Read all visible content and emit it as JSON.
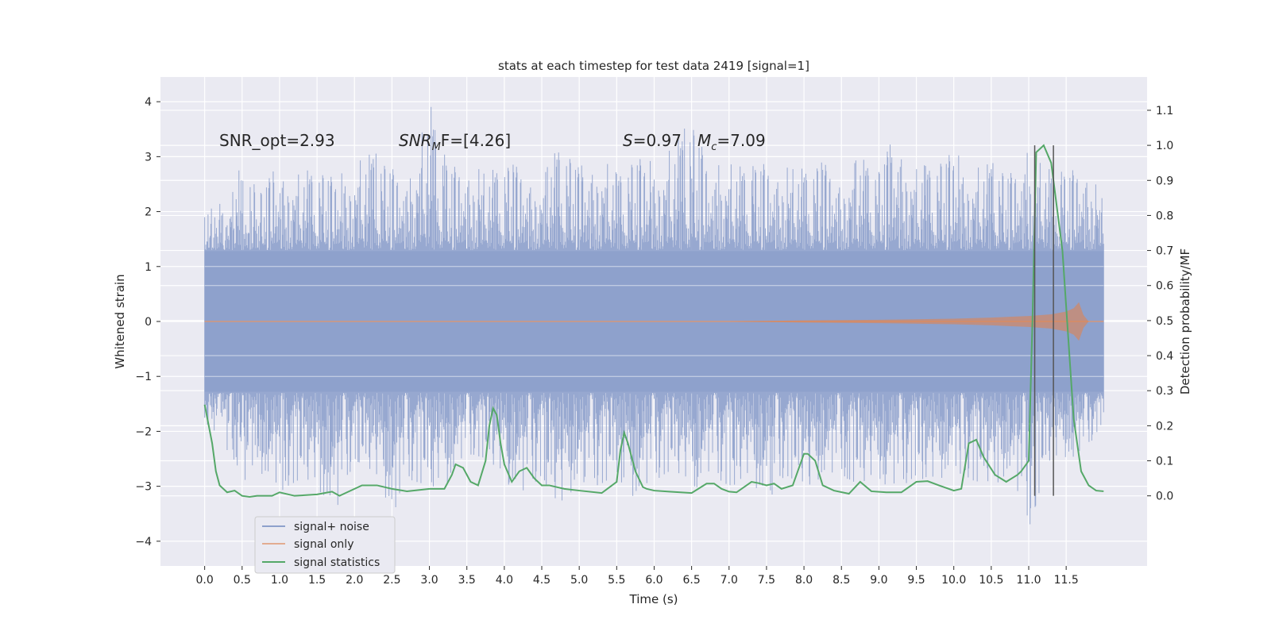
{
  "chart_data": {
    "type": "line",
    "title": "stats at each timestep for test data 2419 [signal=1]",
    "xlabel": "Time (s)",
    "ylabel": "Whitened strain",
    "ylabel_right": "Detection probability/MF",
    "xlim": [
      -0.59,
      12.58
    ],
    "ylim": [
      -4.45,
      4.45
    ],
    "y2lim": [
      -0.2,
      1.195
    ],
    "x_ticks": [
      0.0,
      0.5,
      1.0,
      1.5,
      2.0,
      2.5,
      3.0,
      3.5,
      4.0,
      4.5,
      5.0,
      5.5,
      6.0,
      6.5,
      7.0,
      7.5,
      8.0,
      8.5,
      9.0,
      9.5,
      10.0,
      10.5,
      11.0,
      11.5
    ],
    "x_tick_labels": [
      "0.0",
      "0.5",
      "1.0",
      "1.5",
      "2.0",
      "2.5",
      "3.0",
      "3.5",
      "4.0",
      "4.5",
      "5.0",
      "5.5",
      "6.0",
      "6.5",
      "7.0",
      "7.5",
      "8.0",
      "8.5",
      "9.0",
      "9.5",
      "10.0",
      "10.5",
      "11.0",
      "11.5"
    ],
    "y_ticks": [
      4,
      3,
      2,
      1,
      0,
      -1,
      -2,
      -3,
      -4
    ],
    "y_tick_labels": [
      "4",
      "3",
      "2",
      "1",
      "0",
      "−1",
      "−2",
      "−3",
      "−4"
    ],
    "y2_ticks": [
      1.1,
      1.0,
      0.9,
      0.8,
      0.7,
      0.6,
      0.5,
      0.4,
      0.3,
      0.2,
      0.1,
      0.0
    ],
    "y2_tick_labels": [
      "1.1",
      "1.0",
      "0.9",
      "0.8",
      "0.7",
      "0.6",
      "0.5",
      "0.4",
      "0.3",
      "0.2",
      "0.1",
      "0.0"
    ],
    "grid": true,
    "legend_position": "lower-left",
    "series": [
      {
        "name": "signal+ noise",
        "color": "#8ea1cc",
        "axis": "left",
        "x_range": [
          0.0,
          12.0
        ],
        "envelope_upper": [
          1.9,
          2.5,
          2.8,
          2.4,
          2.9,
          2.7,
          2.8,
          2.6,
          2.9,
          3.1,
          2.8,
          2.6,
          4.05,
          2.8,
          2.9,
          2.7,
          2.9,
          2.8,
          2.6,
          3.3,
          2.8,
          3.1,
          2.7,
          3.0,
          2.9,
          3.2,
          3.7,
          2.8,
          2.9,
          2.8,
          2.9,
          2.8,
          2.8,
          2.9,
          2.7,
          3.0,
          2.8,
          3.5,
          2.8,
          2.9,
          3.1,
          2.8,
          2.9,
          2.7,
          3.1,
          2.8,
          2.7,
          2.9,
          2.2
        ],
        "envelope_lower": [
          -1.8,
          -2.3,
          -2.9,
          -2.8,
          -3.1,
          -2.9,
          -3.0,
          -3.6,
          -2.5,
          -2.8,
          -3.5,
          -2.9,
          -3.0,
          -3.0,
          -2.4,
          -2.5,
          -2.9,
          -3.2,
          -2.8,
          -3.5,
          -2.9,
          -3.0,
          -2.8,
          -3.3,
          -2.9,
          -2.7,
          -3.1,
          -2.8,
          -3.0,
          -2.9,
          -3.3,
          -2.8,
          -3.0,
          -2.9,
          -2.8,
          -3.0,
          -2.9,
          -3.1,
          -2.8,
          -3.0,
          -2.7,
          -2.9,
          -3.0,
          -2.8,
          -3.8,
          -2.6,
          -2.5,
          -2.4,
          -1.8
        ],
        "dense_band": [
          -1.28,
          1.28
        ]
      },
      {
        "name": "signal only",
        "color": "#dd8452",
        "axis": "left",
        "x": [
          0.0,
          7.0,
          8.0,
          9.0,
          10.0,
          10.5,
          11.0,
          11.3,
          11.5,
          11.6,
          11.67,
          11.73,
          11.8,
          12.0
        ],
        "amplitude": [
          0.0,
          0.0,
          0.02,
          0.03,
          0.05,
          0.07,
          0.1,
          0.13,
          0.18,
          0.24,
          0.35,
          0.12,
          0.0,
          0.0
        ]
      },
      {
        "name": "signal statistics",
        "color": "#55a868",
        "axis": "right",
        "x": [
          0.0,
          0.1,
          0.15,
          0.2,
          0.3,
          0.4,
          0.5,
          0.6,
          0.7,
          0.8,
          0.9,
          1.0,
          1.2,
          1.5,
          1.7,
          1.8,
          2.0,
          2.1,
          2.2,
          2.3,
          2.5,
          2.7,
          3.0,
          3.2,
          3.3,
          3.35,
          3.45,
          3.55,
          3.65,
          3.75,
          3.8,
          3.85,
          3.9,
          3.95,
          4.0,
          4.1,
          4.2,
          4.3,
          4.4,
          4.5,
          4.6,
          4.8,
          5.0,
          5.3,
          5.5,
          5.55,
          5.6,
          5.65,
          5.75,
          5.85,
          5.9,
          6.0,
          6.2,
          6.5,
          6.7,
          6.8,
          6.9,
          7.0,
          7.1,
          7.3,
          7.4,
          7.5,
          7.6,
          7.7,
          7.85,
          8.0,
          8.05,
          8.15,
          8.25,
          8.4,
          8.6,
          8.75,
          8.9,
          9.1,
          9.3,
          9.5,
          9.65,
          9.8,
          10.0,
          10.1,
          10.2,
          10.3,
          10.4,
          10.55,
          10.7,
          10.85,
          10.9,
          11.0,
          11.05,
          11.1,
          11.2,
          11.3,
          11.45,
          11.6,
          11.7,
          11.8,
          11.9,
          12.0
        ],
        "values": [
          0.26,
          0.15,
          0.07,
          0.03,
          0.01,
          0.015,
          0.0,
          -0.003,
          0.0,
          0.0,
          0.0,
          0.01,
          0.0,
          0.004,
          0.012,
          0.0,
          0.02,
          0.03,
          0.03,
          0.03,
          0.02,
          0.013,
          0.02,
          0.02,
          0.06,
          0.09,
          0.08,
          0.04,
          0.03,
          0.1,
          0.2,
          0.25,
          0.23,
          0.15,
          0.09,
          0.04,
          0.07,
          0.08,
          0.05,
          0.03,
          0.03,
          0.02,
          0.015,
          0.008,
          0.04,
          0.13,
          0.18,
          0.15,
          0.07,
          0.025,
          0.02,
          0.015,
          0.012,
          0.008,
          0.035,
          0.035,
          0.02,
          0.012,
          0.01,
          0.04,
          0.036,
          0.03,
          0.035,
          0.02,
          0.03,
          0.12,
          0.12,
          0.1,
          0.03,
          0.015,
          0.006,
          0.04,
          0.013,
          0.01,
          0.01,
          0.04,
          0.042,
          0.03,
          0.015,
          0.02,
          0.15,
          0.16,
          0.11,
          0.06,
          0.04,
          0.06,
          0.07,
          0.1,
          0.5,
          0.98,
          1.0,
          0.95,
          0.7,
          0.22,
          0.07,
          0.03,
          0.015,
          0.013
        ]
      }
    ],
    "vertical_markers": [
      11.08,
      11.33
    ],
    "marker_color": "#555555",
    "annotations": {
      "snr_opt": "SNR_opt=2.93",
      "snr_mf_main": "SNR",
      "snr_mf_sub": "M",
      "snr_mf_rest": "F=[4.26]",
      "s_var": "S",
      "s_value": "=0.97",
      "mc_var": "M",
      "mc_sub": "c",
      "mc_value": "=7.09"
    }
  }
}
